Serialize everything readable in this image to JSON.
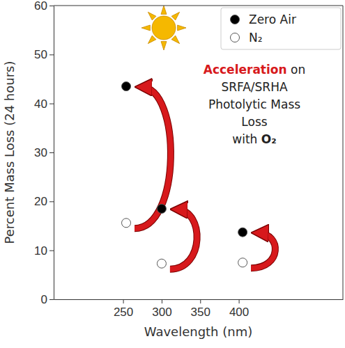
{
  "chart_data": {
    "type": "scatter",
    "x_label": "Wavelength (nm)",
    "y_label": "Percent Mass Loss (24 hours)",
    "x": [
      254,
      300,
      405
    ],
    "series": [
      {
        "name": "Zero Air",
        "color": "#000000",
        "marker": "circle",
        "values": [
          43.5,
          18.5,
          13.7
        ]
      },
      {
        "name": "N₂",
        "color": "#ffffff",
        "marker": "circle",
        "values": [
          15.6,
          7.3,
          7.5
        ]
      }
    ],
    "xlim": [
      160,
      535
    ],
    "xticks": [
      250,
      300,
      350,
      400
    ],
    "ylim": [
      0,
      60
    ],
    "yticks": [
      0,
      10,
      20,
      30,
      40,
      50,
      60
    ],
    "legend": "upper right",
    "annotation": [
      "Acceleration on",
      "SRFA/SRHA",
      "Photolytic Mass",
      "Loss",
      "with O₂"
    ]
  }
}
